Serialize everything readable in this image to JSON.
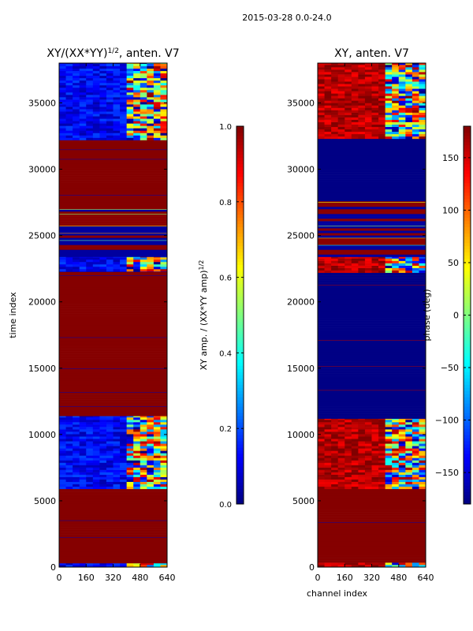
{
  "figure": {
    "suptitle": "2015-03-28 0.0-24.0"
  },
  "chart_data": [
    {
      "type": "heatmap",
      "title": "XY/(XX*YY)",
      "title_sup": "1/2",
      "title_suffix": ", anten. V7",
      "xlabel": "",
      "ylabel": "time index",
      "xlim": [
        0,
        640
      ],
      "ylim": [
        0,
        38000
      ],
      "xticks": [
        0,
        160,
        320,
        480,
        640
      ],
      "yticks": [
        0,
        5000,
        10000,
        15000,
        20000,
        25000,
        30000,
        35000
      ],
      "bands": [
        {
          "y0": 0,
          "y1": 300,
          "fill": "mixed"
        },
        {
          "y0": 300,
          "y1": 5900,
          "fill": "high"
        },
        {
          "y0": 5900,
          "y1": 11400,
          "fill": "mixed"
        },
        {
          "y0": 11400,
          "y1": 22300,
          "fill": "high"
        },
        {
          "y0": 22300,
          "y1": 23400,
          "fill": "mixed"
        },
        {
          "y0": 23400,
          "y1": 27000,
          "fill": "striped"
        },
        {
          "y0": 27000,
          "y1": 32200,
          "fill": "high"
        },
        {
          "y0": 32200,
          "y1": 38000,
          "fill": "mixed"
        }
      ],
      "colorbar": {
        "label": "XY amp. / (XX*YY amp)",
        "label_sup": "1/2",
        "range": [
          0.0,
          1.0
        ],
        "ticks": [
          "0.0",
          "0.2",
          "0.4",
          "0.6",
          "0.8",
          "1.0"
        ]
      }
    },
    {
      "type": "heatmap",
      "title": "XY, anten. V7",
      "xlabel": "channel index",
      "ylabel": "",
      "xlim": [
        0,
        640
      ],
      "ylim": [
        0,
        38000
      ],
      "xticks": [
        0,
        160,
        320,
        480,
        640
      ],
      "yticks": [
        0,
        5000,
        10000,
        15000,
        20000,
        25000,
        30000,
        35000
      ],
      "bands": [
        {
          "y0": 0,
          "y1": 350,
          "fill": "mixed"
        },
        {
          "y0": 350,
          "y1": 5900,
          "fill": "high"
        },
        {
          "y0": 5900,
          "y1": 11200,
          "fill": "mixed"
        },
        {
          "y0": 11200,
          "y1": 22200,
          "fill": "low"
        },
        {
          "y0": 22200,
          "y1": 23400,
          "fill": "mixed"
        },
        {
          "y0": 23400,
          "y1": 27600,
          "fill": "striped"
        },
        {
          "y0": 27600,
          "y1": 32300,
          "fill": "low"
        },
        {
          "y0": 32300,
          "y1": 38000,
          "fill": "mixed"
        }
      ],
      "colorbar": {
        "label": "phase (deg)",
        "range": [
          -180,
          180
        ],
        "ticks": [
          "150",
          "100",
          "50",
          "0",
          "−50",
          "−100",
          "−150"
        ]
      }
    }
  ]
}
